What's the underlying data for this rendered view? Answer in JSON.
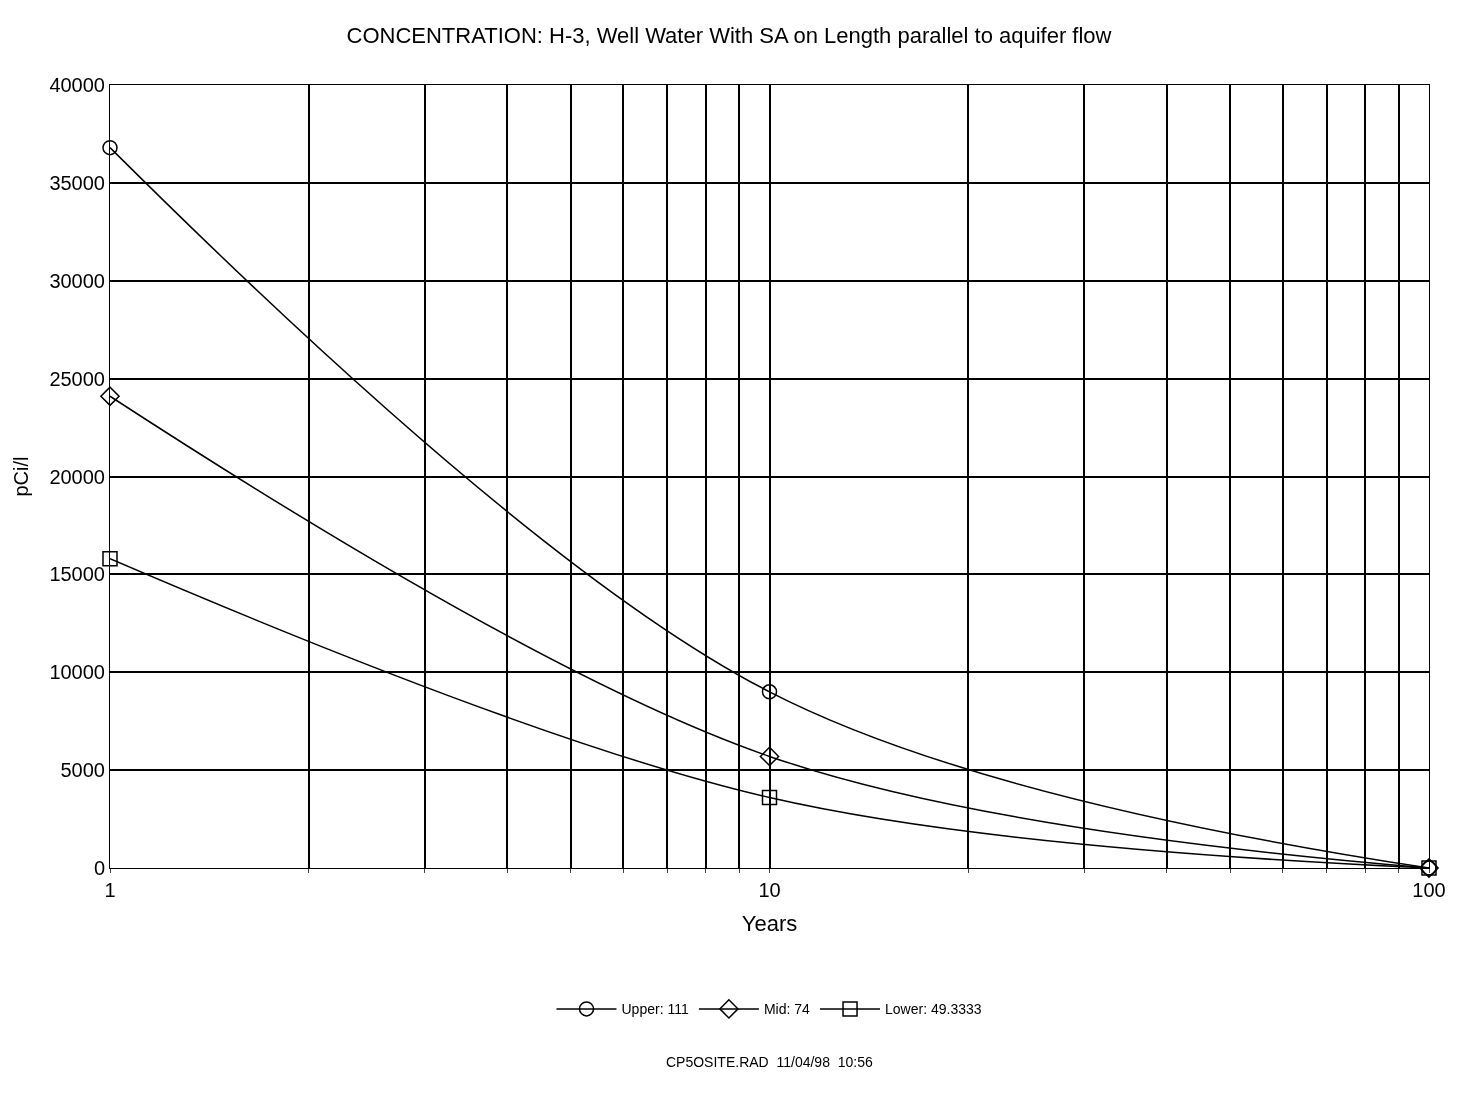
{
  "chart_data": {
    "type": "line",
    "title": "CONCENTRATION: H-3, Well Water With SA on Length parallel to aquifer flow",
    "xlabel": "Years",
    "ylabel": "pCi/l",
    "log": "x",
    "x": [
      1,
      10,
      100
    ],
    "series": [
      {
        "name": "Upper: 111",
        "color": "#000000",
        "marker": "circle",
        "values": [
          36800,
          9000,
          0
        ]
      },
      {
        "name": "Mid: 74",
        "color": "#000000",
        "marker": "diamond",
        "values": [
          24100,
          5700,
          0
        ]
      },
      {
        "name": "Lower: 49.3333",
        "color": "#000000",
        "marker": "square",
        "values": [
          15800,
          3600,
          0
        ]
      }
    ],
    "xlim": [
      1,
      100
    ],
    "xticks": [
      1,
      {
        "value": 2,
        "label": null
      },
      {
        "value": 3,
        "label": null
      },
      {
        "value": 4,
        "label": null
      },
      {
        "value": 5,
        "label": null
      },
      {
        "value": 6,
        "label": null
      },
      {
        "value": 7,
        "label": null
      },
      {
        "value": 8,
        "label": null
      },
      {
        "value": 9,
        "label": null
      },
      10,
      {
        "value": 20,
        "label": null
      },
      {
        "value": 30,
        "label": null
      },
      {
        "value": 40,
        "label": null
      },
      {
        "value": 50,
        "label": null
      },
      {
        "value": 60,
        "label": null
      },
      {
        "value": 70,
        "label": null
      },
      {
        "value": 80,
        "label": null
      },
      {
        "value": 90,
        "label": null
      },
      100
    ],
    "ylim": [
      0,
      40000
    ],
    "yticks": [
      0,
      5000,
      10000,
      15000,
      20000,
      25000,
      30000,
      35000,
      40000
    ],
    "grid": true,
    "legend": "bottom",
    "line_style": "solid",
    "annotations": [
      "CP5OSITE.RAD  11/04/98  10:56"
    ]
  }
}
